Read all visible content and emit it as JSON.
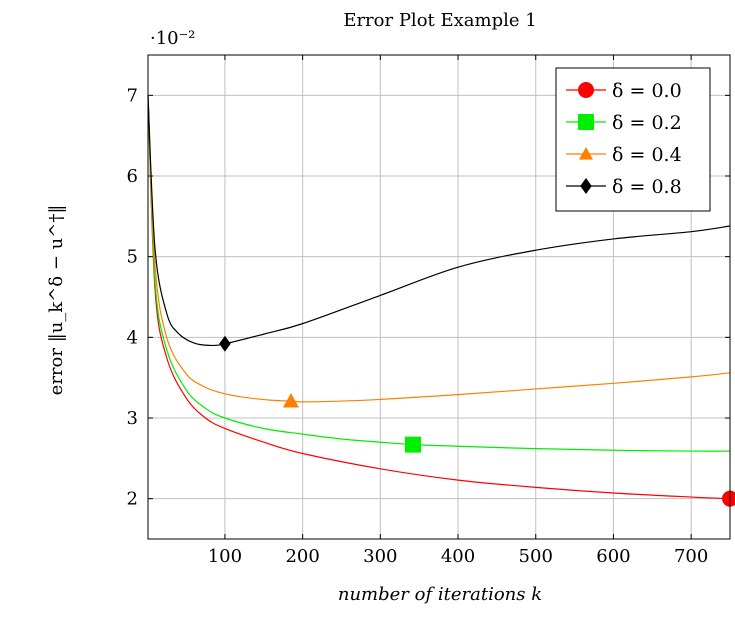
{
  "chart_data": {
    "type": "line",
    "title": "Error Plot Example 1",
    "xlabel": "number of iterations k",
    "ylabel": "error ‖u_k^δ − u^†‖",
    "y_scale_note": "·10⁻²",
    "xlim": [
      1,
      750
    ],
    "ylim": [
      1.5,
      7.5
    ],
    "x_ticks": [
      100,
      200,
      300,
      400,
      500,
      600,
      700
    ],
    "y_ticks": [
      2,
      3,
      4,
      5,
      6,
      7
    ],
    "grid": true,
    "legend_position": "top-right",
    "series": [
      {
        "name": "δ = 0.0",
        "color": "#ff0000",
        "marker": "circle",
        "marker_at": [
          750,
          2.0
        ],
        "x": [
          1,
          10,
          25,
          50,
          75,
          100,
          150,
          200,
          300,
          400,
          500,
          600,
          700,
          750
        ],
        "y": [
          7.0,
          4.6,
          3.75,
          3.25,
          3.0,
          2.87,
          2.7,
          2.56,
          2.37,
          2.23,
          2.14,
          2.07,
          2.02,
          2.0
        ]
      },
      {
        "name": "δ = 0.2",
        "color": "#00ee00",
        "marker": "square",
        "marker_at": [
          342,
          2.67
        ],
        "x": [
          1,
          10,
          25,
          50,
          75,
          100,
          150,
          200,
          250,
          300,
          342,
          400,
          500,
          600,
          700,
          750
        ],
        "y": [
          7.0,
          4.7,
          3.85,
          3.35,
          3.12,
          3.0,
          2.87,
          2.8,
          2.74,
          2.7,
          2.67,
          2.65,
          2.62,
          2.6,
          2.59,
          2.59
        ]
      },
      {
        "name": "δ = 0.4",
        "color": "#ff8000",
        "marker": "triangle",
        "marker_at": [
          185,
          3.21
        ],
        "x": [
          1,
          10,
          25,
          50,
          75,
          100,
          130,
          160,
          185,
          200,
          250,
          300,
          400,
          500,
          600,
          700,
          750
        ],
        "y": [
          7.0,
          4.9,
          4.0,
          3.55,
          3.38,
          3.3,
          3.25,
          3.22,
          3.21,
          3.2,
          3.21,
          3.23,
          3.29,
          3.36,
          3.43,
          3.51,
          3.56
        ]
      },
      {
        "name": "δ = 0.8",
        "color": "#000000",
        "marker": "diamond",
        "marker_at": [
          100,
          3.92
        ],
        "x": [
          1,
          10,
          25,
          40,
          60,
          80,
          100,
          150,
          200,
          300,
          400,
          500,
          600,
          700,
          750
        ],
        "y": [
          7.0,
          5.1,
          4.3,
          4.05,
          3.93,
          3.9,
          3.92,
          4.04,
          4.17,
          4.52,
          4.87,
          5.08,
          5.22,
          5.31,
          5.38
        ]
      }
    ]
  }
}
